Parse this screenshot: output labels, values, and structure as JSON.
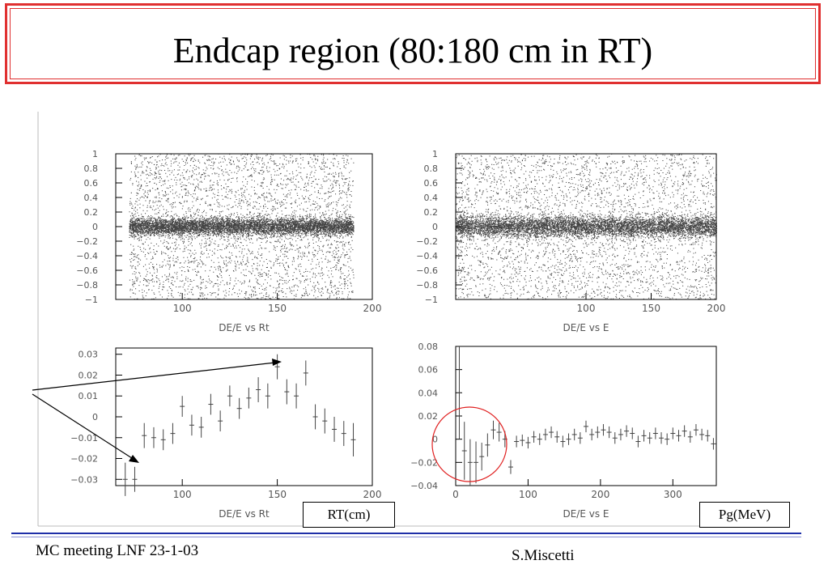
{
  "slide": {
    "title": "Endcap region (80:180 cm in RT)",
    "footer_left": "MC meeting  LNF 23-1-03",
    "footer_right": "S.Miscetti",
    "box_rt": "RT(cm)",
    "box_pg": "Pg(MeV)",
    "colors": {
      "title_border": "#e03030",
      "footer_line": "#1f2fa8",
      "plot_ink": "#000000",
      "annotation_circle": "#e02020"
    }
  },
  "chart_data": [
    {
      "type": "scatter",
      "xlabel": "DE/E vs Rt",
      "xlim": [
        65,
        200
      ],
      "ylim": [
        -1,
        1
      ],
      "xticks": [
        100,
        150,
        200
      ],
      "yticks": [
        1,
        0.8,
        0.6,
        0.4,
        0.2,
        0,
        -0.2,
        -0.4,
        -0.6,
        -0.8,
        -1
      ],
      "ytick_labels": [
        "1",
        "0.8",
        "0.6",
        "0.4",
        "0.2",
        "0",
        "−0.2",
        "−0.4",
        "−0.6",
        "−0.8",
        "−1"
      ],
      "x_range_filled": [
        72,
        190
      ],
      "y_core_sigma": 0.06,
      "grid": false
    },
    {
      "type": "scatter",
      "xlabel": "DE/E vs E",
      "xlim": [
        0,
        200
      ],
      "ylim": [
        -1,
        1
      ],
      "xticks": [
        100,
        150,
        200
      ],
      "yticks": [
        1,
        0.8,
        0.6,
        0.4,
        0.2,
        0,
        -0.2,
        -0.4,
        -0.6,
        -0.8,
        -1
      ],
      "ytick_labels": [
        "1",
        "0.8",
        "0.6",
        "0.4",
        "0.2",
        "0",
        "−0.2",
        "−0.4",
        "−0.6",
        "−0.8",
        "−1"
      ],
      "x_range_filled": [
        0,
        200
      ],
      "y_core_sigma": 0.07,
      "grid": false
    },
    {
      "type": "scatter",
      "xlabel": "DE/E vs Rt",
      "xlim": [
        65,
        200
      ],
      "ylim": [
        -0.033,
        0.033
      ],
      "xticks": [
        100,
        150,
        200
      ],
      "yticks": [
        0.03,
        0.02,
        0.01,
        0,
        -0.01,
        -0.02,
        -0.03
      ],
      "ytick_labels": [
        "0.03",
        "0.02",
        "0.01",
        "0",
        "−0.01",
        "−0.02",
        "−0.03"
      ],
      "x": [
        70,
        75,
        80,
        85,
        90,
        95,
        100,
        105,
        110,
        115,
        120,
        125,
        130,
        135,
        140,
        145,
        150,
        155,
        160,
        165,
        170,
        175,
        180,
        185,
        190
      ],
      "y": [
        -0.03,
        -0.03,
        -0.009,
        -0.01,
        -0.011,
        -0.008,
        0.005,
        -0.004,
        -0.005,
        0.006,
        -0.002,
        0.01,
        0.004,
        0.009,
        0.013,
        0.01,
        0.024,
        0.012,
        0.01,
        0.021,
        0.0,
        -0.002,
        -0.006,
        -0.008,
        -0.011
      ],
      "yerr": [
        0.008,
        0.006,
        0.006,
        0.005,
        0.005,
        0.005,
        0.005,
        0.005,
        0.005,
        0.005,
        0.005,
        0.005,
        0.005,
        0.005,
        0.006,
        0.006,
        0.006,
        0.006,
        0.006,
        0.006,
        0.006,
        0.006,
        0.006,
        0.006,
        0.008
      ],
      "grid": false
    },
    {
      "type": "scatter",
      "xlabel": "DE/E vs E",
      "xlim": [
        0,
        360
      ],
      "ylim": [
        -0.04,
        0.08
      ],
      "xticks": [
        0,
        100,
        200,
        300
      ],
      "yticks": [
        0.08,
        0.06,
        0.04,
        0.02,
        0,
        -0.02,
        -0.04
      ],
      "ytick_labels": [
        "0.08",
        "0.06",
        "0.04",
        "0.02",
        "0",
        "−0.02",
        "−0.04"
      ],
      "x": [
        5,
        12,
        20,
        28,
        36,
        44,
        52,
        60,
        68,
        76,
        84,
        92,
        100,
        108,
        116,
        124,
        132,
        140,
        148,
        156,
        164,
        172,
        180,
        188,
        196,
        204,
        212,
        220,
        228,
        236,
        244,
        252,
        260,
        268,
        276,
        284,
        292,
        300,
        308,
        316,
        324,
        332,
        340,
        348,
        356
      ],
      "y": [
        0.04,
        -0.01,
        -0.02,
        -0.02,
        -0.015,
        -0.005,
        0.008,
        0.006,
        0.0,
        -0.024,
        -0.002,
        -0.001,
        -0.003,
        0.002,
        0.0,
        0.004,
        0.006,
        0.002,
        -0.002,
        0.0,
        0.004,
        0.001,
        0.011,
        0.004,
        0.006,
        0.008,
        0.006,
        0.001,
        0.004,
        0.007,
        0.005,
        -0.002,
        0.003,
        0.001,
        0.005,
        0.001,
        0.0,
        0.005,
        0.003,
        0.007,
        0.002,
        0.008,
        0.004,
        0.003,
        -0.004
      ],
      "yerr": [
        0.04,
        0.025,
        0.02,
        0.018,
        0.012,
        0.01,
        0.008,
        0.008,
        0.007,
        0.006,
        0.005,
        0.005,
        0.005,
        0.005,
        0.005,
        0.005,
        0.005,
        0.005,
        0.005,
        0.005,
        0.005,
        0.005,
        0.005,
        0.005,
        0.005,
        0.005,
        0.005,
        0.005,
        0.005,
        0.005,
        0.005,
        0.005,
        0.005,
        0.005,
        0.005,
        0.005,
        0.005,
        0.005,
        0.005,
        0.005,
        0.005,
        0.005,
        0.005,
        0.005,
        0.005
      ],
      "grid": false
    }
  ]
}
